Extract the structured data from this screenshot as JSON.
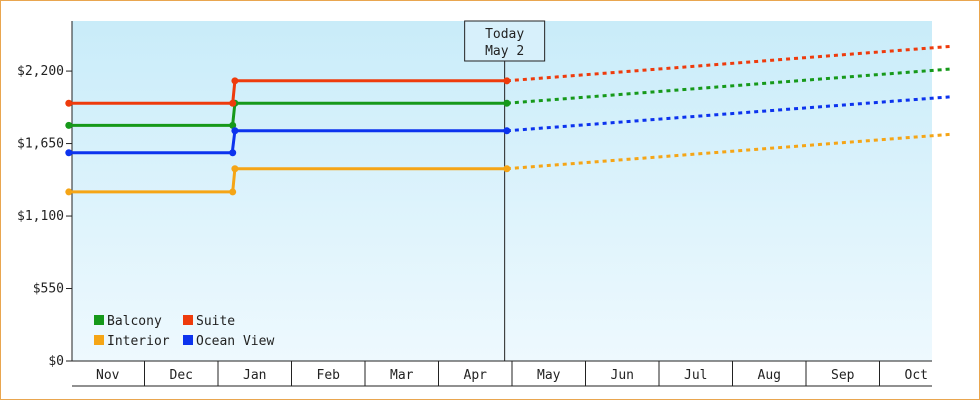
{
  "chart_data": {
    "type": "line",
    "title": "",
    "xlabel": "",
    "ylabel": "",
    "x_categories": [
      "Nov",
      "Dec",
      "Jan",
      "Feb",
      "Mar",
      "Apr",
      "May",
      "Jun",
      "Jul",
      "Aug",
      "Sep",
      "Oct"
    ],
    "y_ticks": [
      {
        "value": 0,
        "label": "$0"
      },
      {
        "value": 550,
        "label": "$550"
      },
      {
        "value": 1100,
        "label": "$1,100"
      },
      {
        "value": 1650,
        "label": "$1,650"
      },
      {
        "value": 2200,
        "label": "$2,200"
      }
    ],
    "ylim": [
      0,
      2580
    ],
    "xlim_months": [
      0,
      12
    ],
    "grid": false,
    "background": "light-blue gradient",
    "today_marker": {
      "line1": "Today",
      "line2": "May 2",
      "x": 5.9
    },
    "legend": {
      "placement": "bottom-left",
      "entries": [
        {
          "label": "Balcony",
          "color": "#16991a"
        },
        {
          "label": "Suite",
          "color": "#ee3b0c"
        },
        {
          "label": "Interior",
          "color": "#f5a516"
        },
        {
          "label": "Ocean View",
          "color": "#0c33ee"
        }
      ]
    },
    "series": [
      {
        "name": "Balcony",
        "color": "#16991a",
        "actual": [
          [
            -0.03,
            1788
          ],
          [
            2.2,
            1788
          ],
          [
            2.2,
            1795
          ],
          [
            2.23,
            1956
          ],
          [
            5.93,
            1956
          ]
        ],
        "projected": [
          [
            5.93,
            1956
          ],
          [
            11.97,
            2216
          ]
        ]
      },
      {
        "name": "Suite",
        "color": "#ee3b0c",
        "actual": [
          [
            -0.03,
            1956
          ],
          [
            2.2,
            1956
          ],
          [
            2.23,
            2126
          ],
          [
            5.93,
            2126
          ]
        ],
        "projected": [
          [
            5.93,
            2126
          ],
          [
            11.97,
            2387
          ]
        ]
      },
      {
        "name": "Interior",
        "color": "#f5a516",
        "actual": [
          [
            -0.03,
            1283
          ],
          [
            2.2,
            1283
          ],
          [
            2.23,
            1459
          ],
          [
            5.93,
            1459
          ]
        ],
        "projected": [
          [
            5.93,
            1459
          ],
          [
            11.97,
            1720
          ]
        ]
      },
      {
        "name": "Ocean View",
        "color": "#0c33ee",
        "actual": [
          [
            -0.03,
            1580
          ],
          [
            2.2,
            1580
          ],
          [
            2.2,
            1610
          ],
          [
            2.23,
            1747
          ],
          [
            5.93,
            1747
          ]
        ],
        "projected": [
          [
            5.93,
            1747
          ],
          [
            11.97,
            2005
          ]
        ]
      }
    ]
  }
}
